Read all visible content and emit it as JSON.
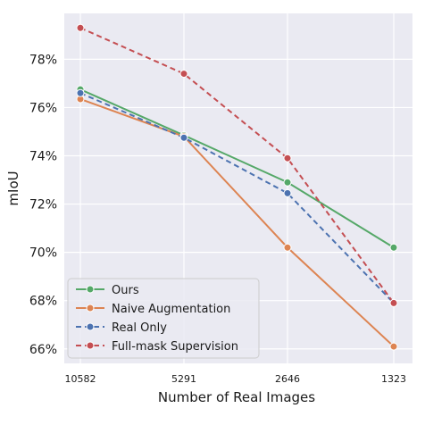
{
  "chart_data": {
    "type": "line",
    "title": "",
    "xlabel": "Number of Real Images",
    "ylabel": "mIoU",
    "categories": [
      "10582",
      "5291",
      "2646",
      "1323"
    ],
    "ylim": [
      65.4,
      79.9
    ],
    "yticks": [
      66,
      68,
      70,
      72,
      74,
      76,
      78
    ],
    "ytick_labels": [
      "66%",
      "68%",
      "70%",
      "72%",
      "74%",
      "76%",
      "78%"
    ],
    "grid": true,
    "legend_position": "lower-left",
    "series": [
      {
        "name": "Ours",
        "values": [
          76.75,
          74.85,
          72.9,
          70.2
        ],
        "color": "#55a868",
        "dashed": false
      },
      {
        "name": "Naive Augmentation",
        "values": [
          76.35,
          74.8,
          70.2,
          66.1
        ],
        "color": "#dd8452",
        "dashed": false
      },
      {
        "name": "Real Only",
        "values": [
          76.6,
          74.75,
          72.45,
          67.9
        ],
        "color": "#4c72b0",
        "dashed": true
      },
      {
        "name": "Full-mask Supervision",
        "values": [
          79.3,
          77.4,
          73.9,
          67.9
        ],
        "color": "#c44e52",
        "dashed": true
      }
    ]
  }
}
